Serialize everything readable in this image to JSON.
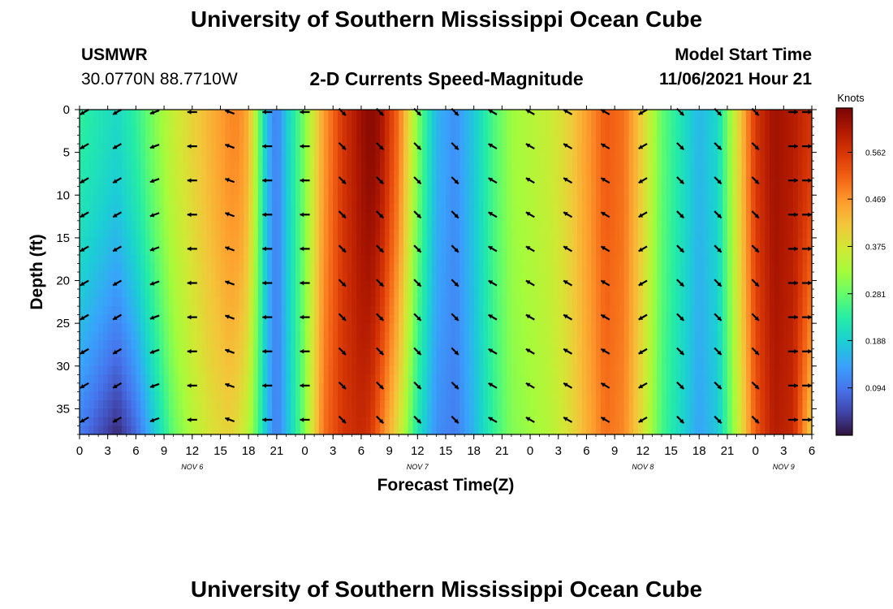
{
  "header": {
    "title": "University of Southern Mississippi Ocean Cube",
    "station": "USMWR",
    "coords": "30.0770N  88.7710W",
    "plot_title": "2-D Currents Speed-Magnitude",
    "model_label": "Model Start Time",
    "model_time": "11/06/2021 Hour 21"
  },
  "footer": {
    "title": "University of Southern Mississippi Ocean Cube"
  },
  "colors": {
    "palette": [
      "#30123b",
      "#4145ab",
      "#4675ed",
      "#39a2fc",
      "#1bcfd4",
      "#24eca6",
      "#61fc6c",
      "#a4fc3b",
      "#d1e834",
      "#f3c63a",
      "#fe9b2d",
      "#f36315",
      "#d93806",
      "#b11901",
      "#7a0403"
    ]
  },
  "chart_data": {
    "type": "heatmap",
    "title": "2-D Currents Speed-Magnitude",
    "xlabel": "Forecast Time(Z)",
    "ylabel": "Depth (ft)",
    "x_tick_labels": [
      "0",
      "3",
      "6",
      "9",
      "12",
      "15",
      "18",
      "21",
      "0",
      "3",
      "6",
      "9",
      "12",
      "15",
      "18",
      "21",
      "0",
      "3",
      "6",
      "9",
      "12",
      "15",
      "18",
      "21",
      "0",
      "3",
      "6"
    ],
    "date_labels": [
      {
        "text": "NOV 6",
        "tick_index": 4
      },
      {
        "text": "NOV 7",
        "tick_index": 12
      },
      {
        "text": "NOV 8",
        "tick_index": 20
      },
      {
        "text": "NOV 9",
        "tick_index": 25
      }
    ],
    "y_ticks": [
      0,
      5,
      10,
      15,
      20,
      25,
      30,
      35
    ],
    "ylim": [
      0,
      38
    ],
    "x_hours": 78,
    "colorbar": {
      "label": "Knots",
      "ticks": [
        "0.562",
        "0.469",
        "0.375",
        "0.281",
        "0.188",
        "0.094"
      ],
      "tick_values": [
        0.562,
        0.469,
        0.375,
        0.281,
        0.188,
        0.094
      ],
      "range": [
        0,
        0.65
      ]
    },
    "speed_profile": {
      "hours": [
        0,
        2,
        4,
        6,
        8,
        10,
        12,
        14,
        16,
        17,
        18,
        19,
        20,
        21,
        22,
        24,
        26,
        28,
        30,
        31,
        32,
        34,
        36,
        38,
        40,
        42,
        44,
        46,
        48,
        50,
        52,
        54,
        56,
        58,
        60,
        62,
        64,
        66,
        68,
        70,
        72,
        74,
        76,
        78
      ],
      "surface_knots": [
        0.24,
        0.22,
        0.2,
        0.24,
        0.3,
        0.36,
        0.4,
        0.44,
        0.48,
        0.48,
        0.44,
        0.3,
        0.16,
        0.1,
        0.18,
        0.3,
        0.46,
        0.56,
        0.62,
        0.64,
        0.62,
        0.5,
        0.3,
        0.16,
        0.12,
        0.18,
        0.26,
        0.32,
        0.34,
        0.36,
        0.4,
        0.46,
        0.52,
        0.5,
        0.4,
        0.28,
        0.22,
        0.16,
        0.2,
        0.38,
        0.56,
        0.62,
        0.6,
        0.56
      ],
      "bottom_knots": [
        0.1,
        0.06,
        0.02,
        0.08,
        0.18,
        0.28,
        0.34,
        0.38,
        0.4,
        0.38,
        0.34,
        0.26,
        0.16,
        0.1,
        0.16,
        0.3,
        0.5,
        0.56,
        0.58,
        0.56,
        0.5,
        0.38,
        0.22,
        0.12,
        0.1,
        0.16,
        0.24,
        0.3,
        0.32,
        0.34,
        0.38,
        0.44,
        0.5,
        0.48,
        0.38,
        0.26,
        0.2,
        0.14,
        0.18,
        0.34,
        0.52,
        0.6,
        0.58,
        0.4
      ]
    },
    "vector_hours": [
      0,
      4,
      8,
      12,
      16,
      20,
      24,
      28,
      32,
      36,
      40,
      44,
      48,
      52,
      56,
      60,
      64,
      68,
      72,
      76,
      78
    ],
    "vector_directions_deg": [
      210,
      210,
      200,
      180,
      160,
      180,
      180,
      315,
      315,
      315,
      315,
      150,
      150,
      150,
      150,
      210,
      315,
      315,
      315,
      0,
      0
    ],
    "vector_depths": [
      0,
      4,
      8,
      12,
      16,
      20,
      24,
      28,
      32,
      36
    ]
  }
}
